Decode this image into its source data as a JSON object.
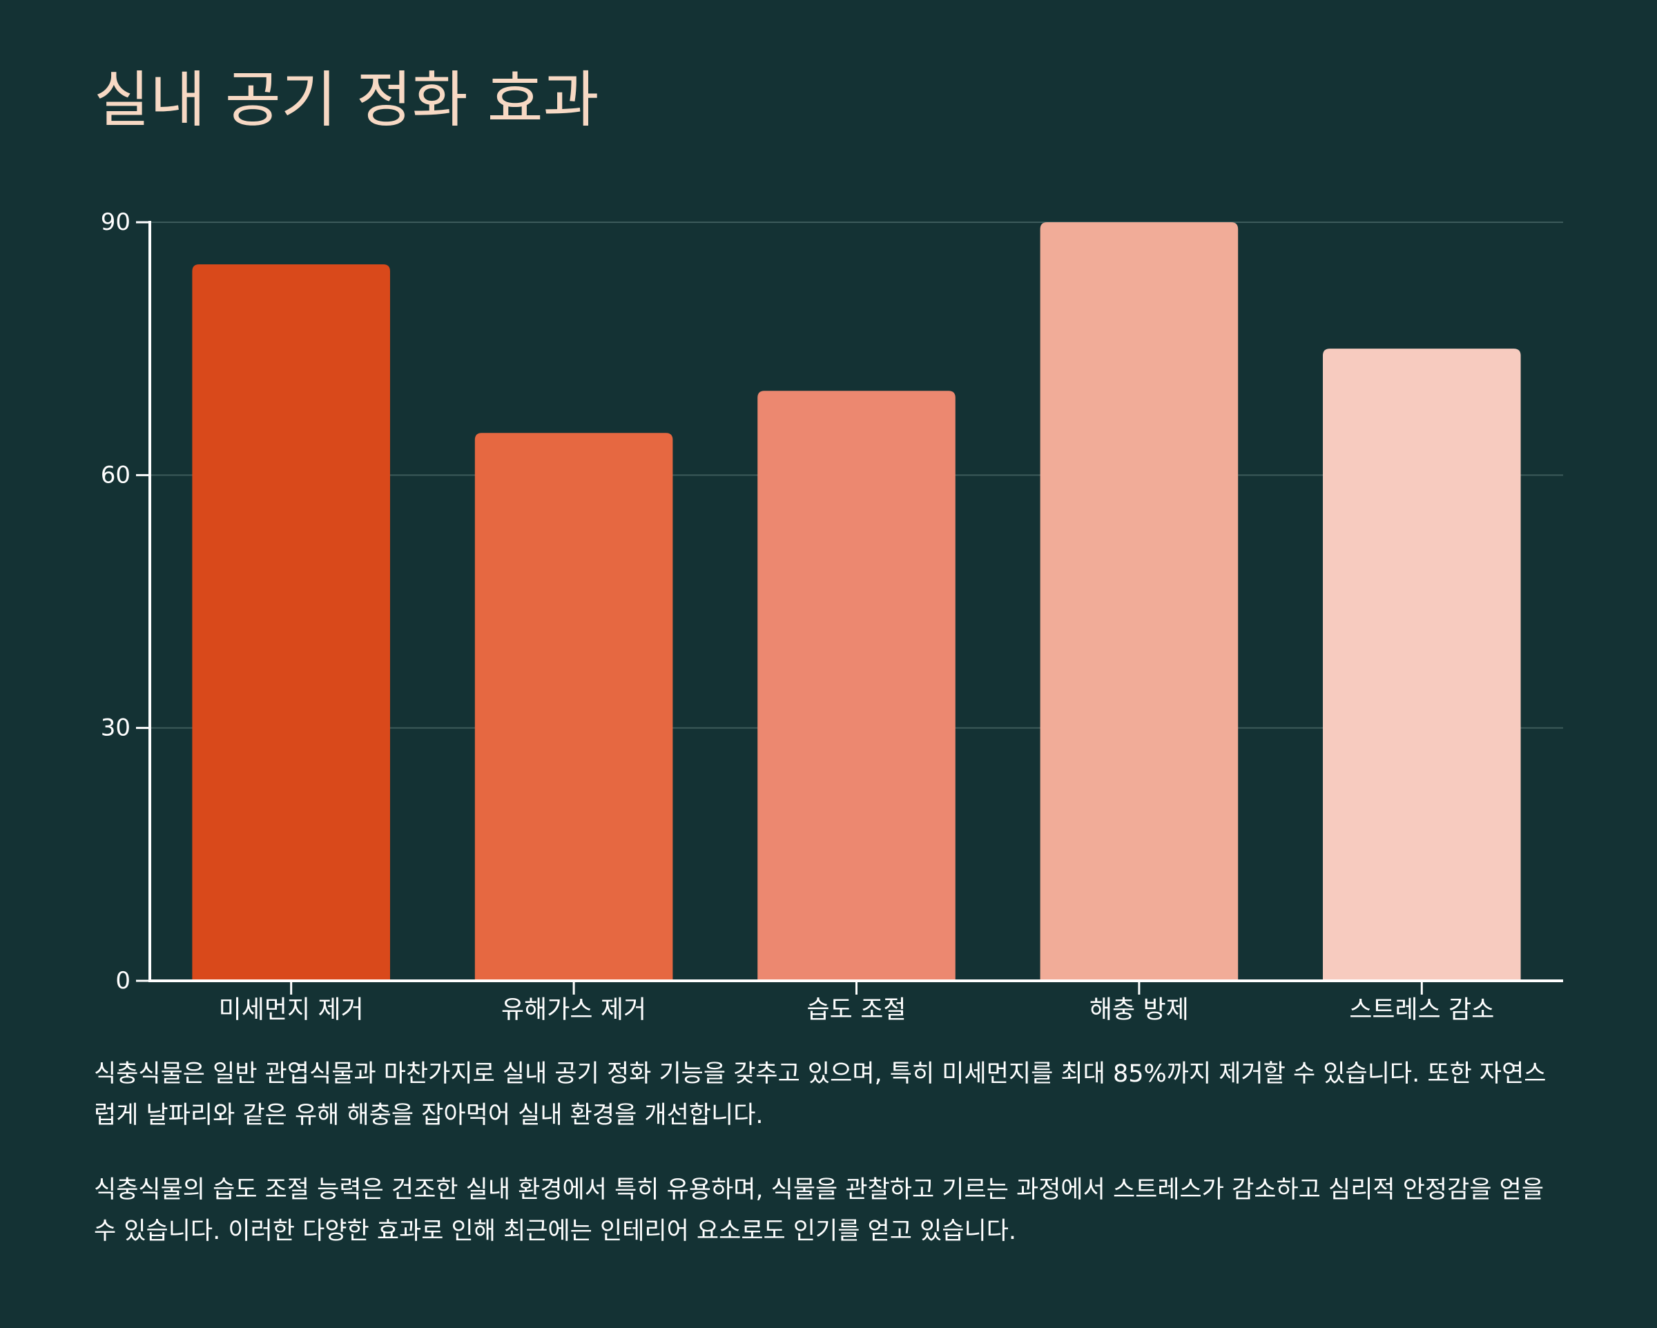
{
  "title": "실내 공기 정화 효과",
  "chart_data": {
    "type": "bar",
    "title": "실내 공기 정화 효과",
    "xlabel": "",
    "ylabel": "",
    "categories": [
      "미세먼지 제거",
      "유해가스 제거",
      "습도 조절",
      "해충 방제",
      "스트레스 감소"
    ],
    "values": [
      85,
      65,
      70,
      90,
      75
    ],
    "ylim": [
      0,
      90
    ],
    "yticks": [
      0,
      30,
      60,
      90
    ],
    "grid": true,
    "colors": [
      "#d9491b",
      "#e66841",
      "#ec8870",
      "#f1ac98",
      "#f7cbbf"
    ]
  },
  "description": [
    "식충식물은 일반 관엽식물과 마찬가지로 실내 공기 정화 기능을 갖추고 있으며, 특히 미세먼지를 최대 85%까지 제거할 수 있습니다. 또한 자연스럽게 날파리와 같은 유해 해충을 잡아먹어 실내 환경을 개선합니다.",
    "식충식물의 습도 조절 능력은 건조한 실내 환경에서 특히 유용하며, 식물을 관찰하고 기르는 과정에서 스트레스가 감소하고 심리적 안정감을 얻을 수 있습니다. 이러한 다양한 효과로 인해 최근에는 인테리어 요소로도 인기를 얻고 있습니다."
  ]
}
